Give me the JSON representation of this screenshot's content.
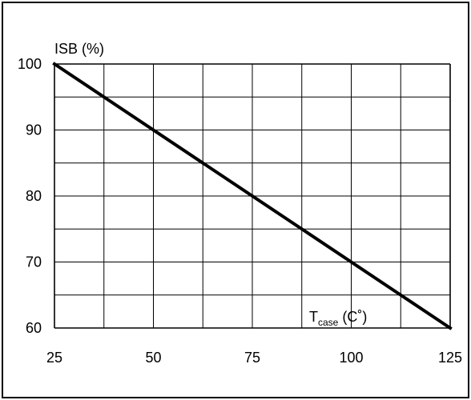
{
  "chart_data": {
    "type": "line",
    "ylabel": "ISB (%)",
    "xlabel_main": "T",
    "xlabel_sub": "case",
    "xlabel_unit": " (C˚)",
    "xlim": [
      25,
      125
    ],
    "ylim": [
      60,
      100
    ],
    "x_ticks": [
      25,
      50,
      75,
      100,
      125
    ],
    "y_ticks": [
      60,
      70,
      80,
      90,
      100
    ],
    "x_grid_step": 12.5,
    "y_grid_step": 5,
    "series": [
      {
        "x": [
          25,
          125
        ],
        "y": [
          100,
          60
        ]
      }
    ],
    "colors": {
      "line": "#000000",
      "grid": "#000000"
    }
  }
}
